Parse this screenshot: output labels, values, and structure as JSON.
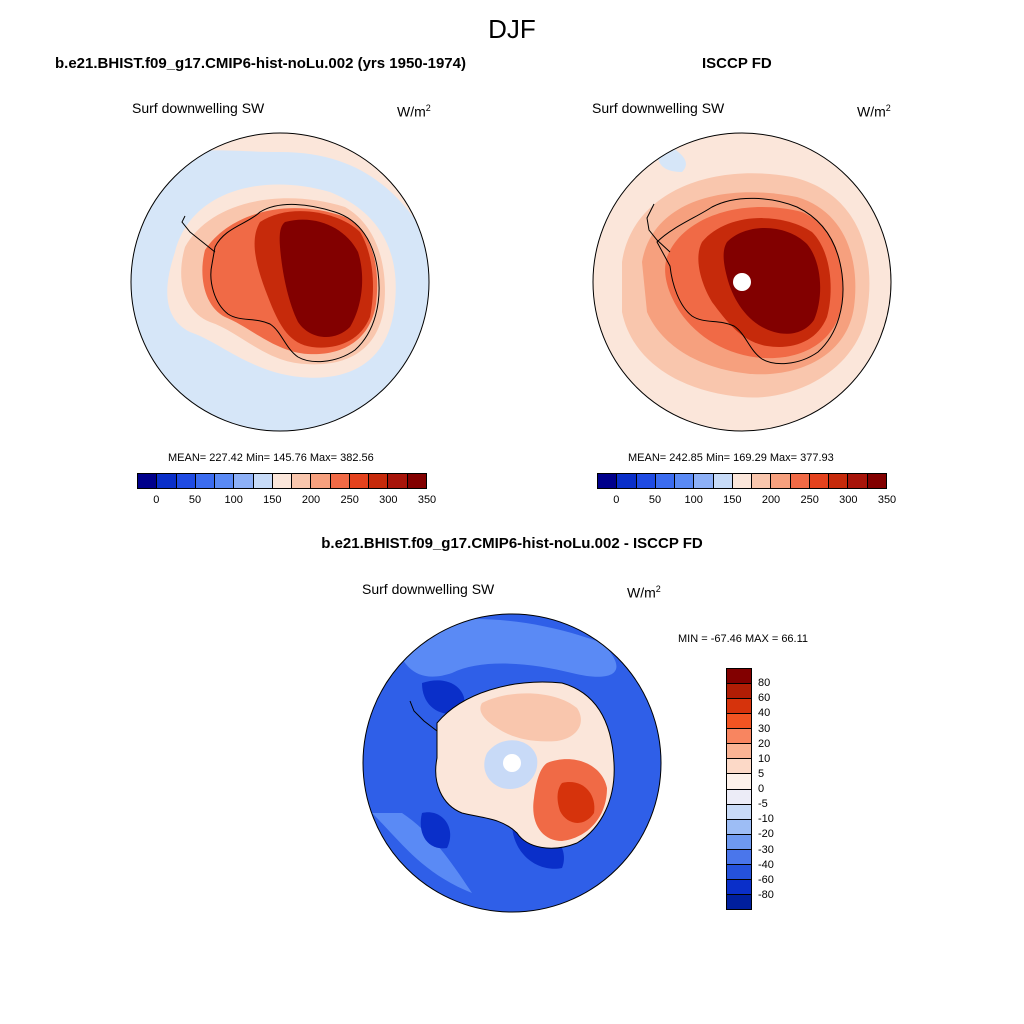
{
  "figure": {
    "title": "DJF"
  },
  "panels": [
    {
      "title": "b.e21.BHIST.f09_g17.CMIP6-hist-noLu.002 (yrs 1950-1974)",
      "variable": "Surf downwelling SW",
      "units_base": "W/m",
      "units_exp": "2",
      "stats": "MEAN= 227.42  Min= 145.76  Max= 382.56"
    },
    {
      "title": "ISCCP FD",
      "variable": "Surf downwelling SW",
      "units_base": "W/m",
      "units_exp": "2",
      "stats": "MEAN= 242.85  Min= 169.29  Max= 377.93"
    },
    {
      "title": "b.e21.BHIST.f09_g17.CMIP6-hist-noLu.002 - ISCCP FD",
      "variable": "Surf downwelling SW",
      "units_base": "W/m",
      "units_exp": "2",
      "stats": "MIN = -67.46 MAX =  66.11"
    }
  ],
  "chart_data": [
    {
      "type": "heatmap",
      "title": "b.e21.BHIST.f09_g17.CMIP6-hist-noLu.002 (yrs 1950-1974)",
      "projection": "south polar stereographic",
      "variable": "Surf downwelling SW",
      "units": "W/m2",
      "mean": 227.42,
      "min": 145.76,
      "max": 382.56,
      "colorbar": {
        "ticks": [
          "0",
          "50",
          "100",
          "150",
          "200",
          "250",
          "300",
          "350"
        ],
        "colors": [
          "#00008b",
          "#0a2fc9",
          "#1f4be3",
          "#3b6cf0",
          "#5a8af5",
          "#8db0f7",
          "#c7dbf8",
          "#fbe6da",
          "#f9c6ad",
          "#f6a07e",
          "#f06a46",
          "#e4421d",
          "#c62a0b",
          "#a7140a",
          "#820000"
        ]
      }
    },
    {
      "type": "heatmap",
      "title": "ISCCP FD",
      "projection": "south polar stereographic",
      "variable": "Surf downwelling SW",
      "units": "W/m2",
      "mean": 242.85,
      "min": 169.29,
      "max": 377.93,
      "colorbar": {
        "ticks": [
          "0",
          "50",
          "100",
          "150",
          "200",
          "250",
          "300",
          "350"
        ],
        "colors": [
          "#00008b",
          "#0a2fc9",
          "#1f4be3",
          "#3b6cf0",
          "#5a8af5",
          "#8db0f7",
          "#c7dbf8",
          "#fbe6da",
          "#f9c6ad",
          "#f6a07e",
          "#f06a46",
          "#e4421d",
          "#c62a0b",
          "#a7140a",
          "#820000"
        ]
      }
    },
    {
      "type": "heatmap",
      "title": "b.e21.BHIST.f09_g17.CMIP6-hist-noLu.002 - ISCCP FD",
      "projection": "south polar stereographic",
      "variable": "Surf downwelling SW",
      "units": "W/m2",
      "min": -67.46,
      "max": 66.11,
      "colorbar": {
        "ticks": [
          "80",
          "60",
          "40",
          "30",
          "20",
          "10",
          "5",
          "0",
          "-5",
          "-10",
          "-20",
          "-30",
          "-40",
          "-60",
          "-80"
        ],
        "colors": [
          "#820000",
          "#b01d05",
          "#d6330c",
          "#f25422",
          "#f88560",
          "#fab394",
          "#fcd9c7",
          "#fdf1ea",
          "#ececf7",
          "#c8daf7",
          "#9dbdf5",
          "#6e99f0",
          "#4a76eb",
          "#2552dc",
          "#0a2fc9",
          "#001f9e"
        ]
      }
    }
  ]
}
